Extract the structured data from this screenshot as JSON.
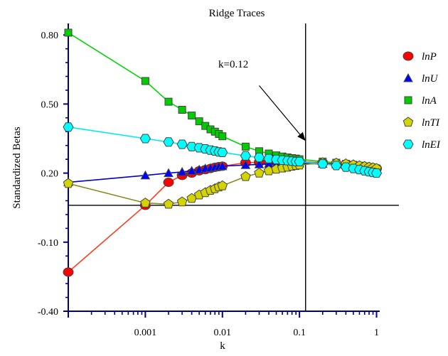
{
  "chart_data": {
    "type": "line",
    "title": "Ridge Traces",
    "xlabel": "k",
    "ylabel": "Standardized Betas",
    "xscale": "log",
    "xlim": [
      0.0001,
      1.1
    ],
    "ylim": [
      -0.4,
      0.85
    ],
    "xticks": [
      {
        "value": 0.001,
        "label": "0.001"
      },
      {
        "value": 0.01,
        "label": "0.01"
      },
      {
        "value": 0.1,
        "label": "0.1"
      },
      {
        "value": 1,
        "label": "1"
      }
    ],
    "yticks": [
      {
        "value": 0.8,
        "label": "0.80"
      },
      {
        "value": 0.5,
        "label": "0.50"
      },
      {
        "value": 0.2,
        "label": "0.20"
      },
      {
        "value": -0.1,
        "label": "-0.10"
      },
      {
        "value": -0.4,
        "label": "-0.40"
      }
    ],
    "reference_lines": {
      "horizontal_y": 0.06,
      "vertical_x": 0.12
    },
    "annotation": {
      "text": "k=0.12",
      "arrow_from": [
        0.03,
        0.58
      ],
      "arrow_to": [
        0.12,
        0.34
      ]
    },
    "x": [
      0.0001,
      0.001,
      0.002,
      0.003,
      0.004,
      0.005,
      0.006,
      0.007,
      0.008,
      0.009,
      0.01,
      0.02,
      0.03,
      0.04,
      0.05,
      0.06,
      0.07,
      0.08,
      0.09,
      0.1,
      0.2,
      0.3,
      0.4,
      0.5,
      0.6,
      0.7,
      0.8,
      0.9,
      1.0
    ],
    "series": [
      {
        "name": "lnP",
        "marker": "circle",
        "color": "#ff0000",
        "line_color": "#ff3b1f",
        "values": [
          -0.23,
          0.06,
          0.16,
          0.19,
          0.2,
          0.21,
          0.215,
          0.22,
          0.225,
          0.228,
          0.23,
          0.245,
          0.247,
          0.248,
          0.249,
          0.25,
          0.25,
          0.25,
          0.25,
          0.25,
          0.245,
          0.24,
          0.235,
          0.232,
          0.23,
          0.227,
          0.225,
          0.223,
          0.22
        ]
      },
      {
        "name": "lnU",
        "marker": "triangle",
        "color": "#0000ff",
        "line_color": "#0000cc",
        "values": [
          0.16,
          0.19,
          0.2,
          0.205,
          0.21,
          0.215,
          0.22,
          0.222,
          0.225,
          0.228,
          0.23,
          0.235,
          0.238,
          0.24,
          0.24,
          0.241,
          0.241,
          0.241,
          0.242,
          0.242,
          0.24,
          0.238,
          0.235,
          0.232,
          0.23,
          0.228,
          0.225,
          0.223,
          0.22
        ]
      },
      {
        "name": "lnA",
        "marker": "square",
        "color": "#00cc00",
        "line_color": "#00d400",
        "values": [
          0.81,
          0.6,
          0.51,
          0.475,
          0.45,
          0.425,
          0.405,
          0.39,
          0.38,
          0.37,
          0.36,
          0.315,
          0.295,
          0.285,
          0.277,
          0.272,
          0.268,
          0.265,
          0.263,
          0.26,
          0.25,
          0.245,
          0.24,
          0.236,
          0.232,
          0.229,
          0.226,
          0.223,
          0.22
        ]
      },
      {
        "name": "lnTI",
        "marker": "pentagon",
        "color": "#d4d400",
        "line_color": "#8a8a20",
        "values": [
          0.155,
          0.07,
          0.065,
          0.075,
          0.09,
          0.105,
          0.115,
          0.125,
          0.132,
          0.14,
          0.145,
          0.185,
          0.2,
          0.21,
          0.217,
          0.222,
          0.226,
          0.23,
          0.233,
          0.235,
          0.245,
          0.243,
          0.24,
          0.236,
          0.232,
          0.229,
          0.226,
          0.223,
          0.22
        ]
      },
      {
        "name": "lnEI",
        "marker": "hexagon",
        "color": "#00ffff",
        "line_color": "#00e8f0",
        "values": [
          0.4,
          0.35,
          0.335,
          0.325,
          0.315,
          0.31,
          0.305,
          0.3,
          0.296,
          0.292,
          0.29,
          0.275,
          0.268,
          0.263,
          0.259,
          0.256,
          0.254,
          0.252,
          0.25,
          0.25,
          0.24,
          0.233,
          0.226,
          0.22,
          0.215,
          0.21,
          0.206,
          0.203,
          0.2
        ]
      }
    ],
    "legend": {
      "placement": "right"
    }
  }
}
